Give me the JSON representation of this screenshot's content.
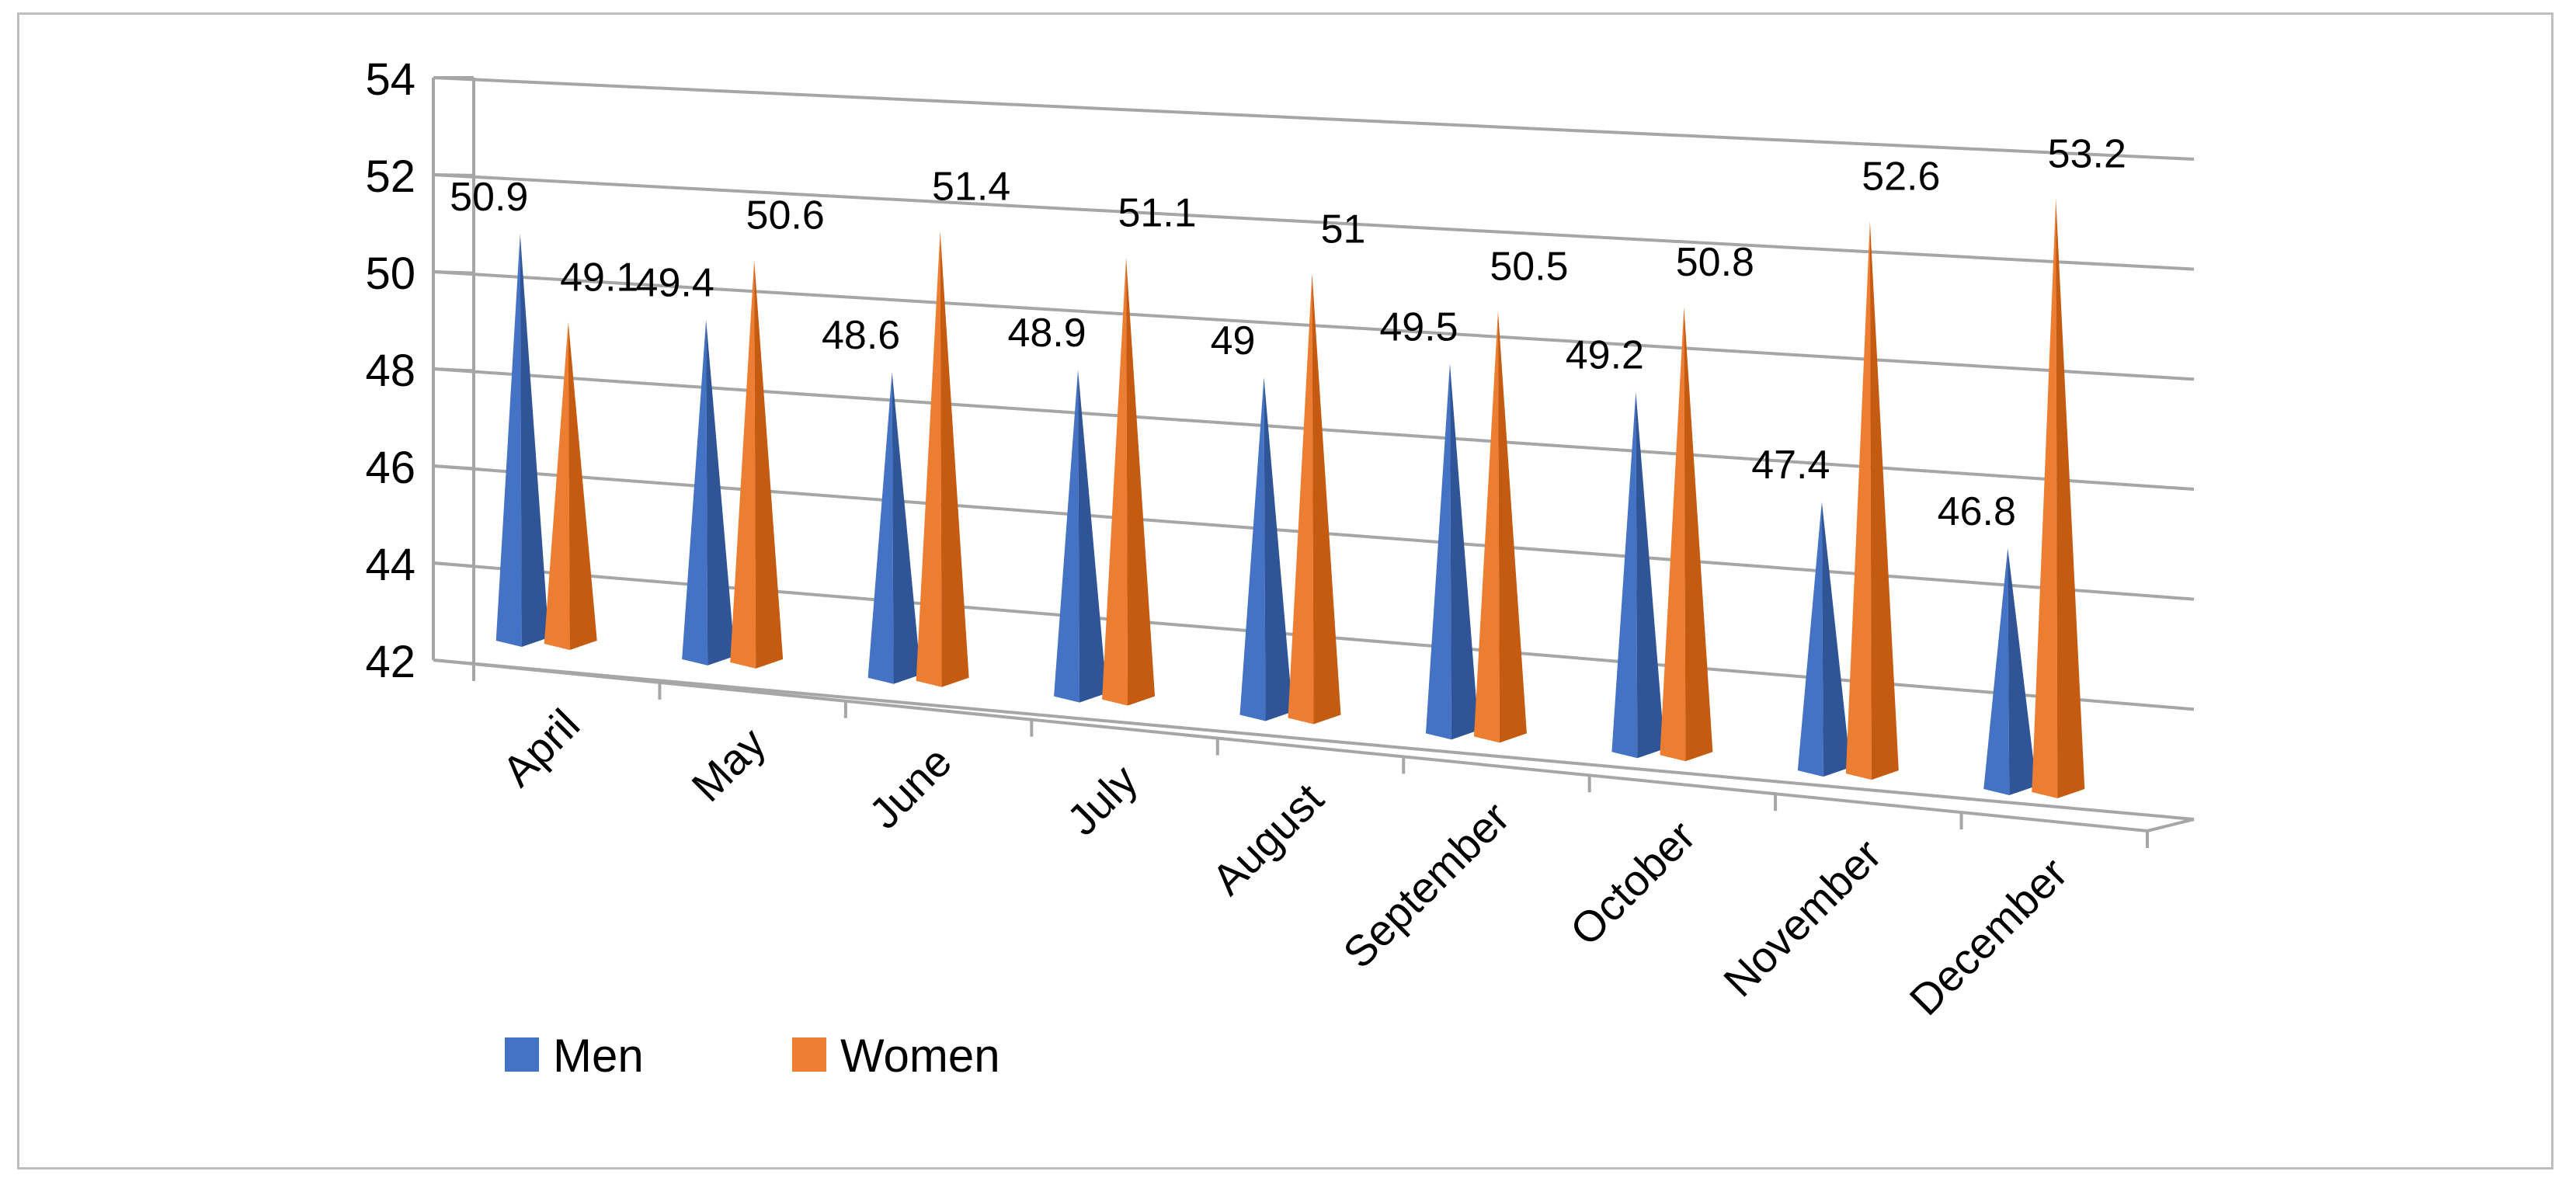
{
  "chart_data": {
    "type": "bar",
    "style": "3d-cone",
    "title": "",
    "xlabel": "",
    "ylabel": "",
    "ylim": [
      42,
      54
    ],
    "yticks": [
      "42",
      "44",
      "46",
      "48",
      "50",
      "52",
      "54"
    ],
    "grid": true,
    "legend_position": "bottom-left",
    "categories": [
      "April",
      "May",
      "June",
      "July",
      "August",
      "September",
      "October",
      "November",
      "December"
    ],
    "series": [
      {
        "name": "Men",
        "color": "#4472C4",
        "dark": "#2F5597",
        "values": [
          50.9,
          49.4,
          48.6,
          48.9,
          49,
          49.5,
          49.2,
          47.4,
          46.8
        ],
        "labels": [
          "50.9",
          "49.4",
          "48.6",
          "48.9",
          "49",
          "49.5",
          "49.2",
          "47.4",
          "46.8"
        ]
      },
      {
        "name": "Women",
        "color": "#ED7D31",
        "dark": "#C55A11",
        "values": [
          49.1,
          50.6,
          51.4,
          51.1,
          51,
          50.5,
          50.8,
          52.6,
          53.2
        ],
        "labels": [
          "49.1",
          "50.6",
          "51.4",
          "51.1",
          "51",
          "50.5",
          "50.8",
          "52.6",
          "53.2"
        ]
      }
    ]
  }
}
